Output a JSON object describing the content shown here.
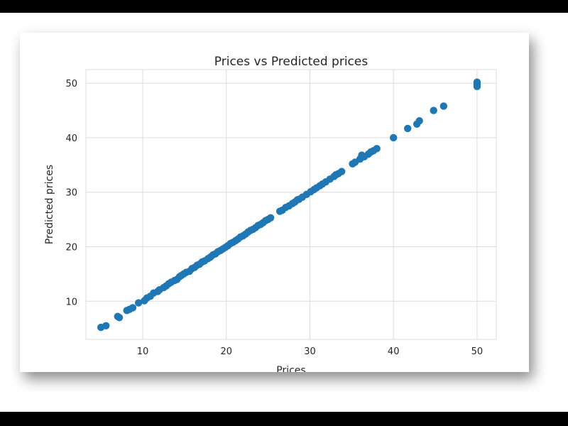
{
  "chart_data": {
    "type": "scatter",
    "title": "Prices vs Predicted prices",
    "xlabel": "Prices",
    "ylabel": "Predicted prices",
    "xlim": [
      3.2,
      52.3
    ],
    "ylim": [
      3.0,
      52.5
    ],
    "xticks": [
      10,
      20,
      30,
      40,
      50
    ],
    "yticks": [
      10,
      20,
      30,
      40,
      50
    ],
    "grid": true,
    "colors": {
      "points": "#1f77b4",
      "grid": "#dcdcdc",
      "background": "#ffffff"
    },
    "series": [
      {
        "points": [
          [
            5.0,
            5.2
          ],
          [
            5.6,
            5.5
          ],
          [
            7.0,
            7.2
          ],
          [
            7.2,
            7.0
          ],
          [
            8.1,
            8.3
          ],
          [
            8.4,
            8.5
          ],
          [
            8.8,
            8.8
          ],
          [
            9.5,
            9.7
          ],
          [
            10.2,
            10.1
          ],
          [
            10.5,
            10.6
          ],
          [
            10.9,
            10.9
          ],
          [
            11.3,
            11.5
          ],
          [
            11.8,
            11.8
          ],
          [
            12.0,
            12.1
          ],
          [
            12.5,
            12.5
          ],
          [
            12.8,
            12.8
          ],
          [
            13.1,
            13.2
          ],
          [
            13.4,
            13.5
          ],
          [
            13.8,
            13.8
          ],
          [
            14.1,
            14.0
          ],
          [
            14.4,
            14.5
          ],
          [
            14.6,
            14.7
          ],
          [
            14.9,
            15.0
          ],
          [
            15.2,
            15.3
          ],
          [
            15.6,
            15.5
          ],
          [
            15.9,
            16.0
          ],
          [
            16.2,
            16.2
          ],
          [
            16.5,
            16.6
          ],
          [
            16.8,
            16.8
          ],
          [
            17.1,
            17.2
          ],
          [
            17.4,
            17.4
          ],
          [
            17.8,
            17.8
          ],
          [
            18.1,
            18.1
          ],
          [
            18.4,
            18.5
          ],
          [
            18.7,
            18.7
          ],
          [
            19.0,
            19.1
          ],
          [
            19.3,
            19.3
          ],
          [
            19.6,
            19.6
          ],
          [
            19.9,
            19.9
          ],
          [
            20.2,
            20.2
          ],
          [
            20.5,
            20.6
          ],
          [
            20.8,
            20.8
          ],
          [
            21.1,
            21.1
          ],
          [
            21.4,
            21.4
          ],
          [
            21.7,
            21.8
          ],
          [
            22.0,
            22.0
          ],
          [
            22.3,
            22.3
          ],
          [
            22.6,
            22.7
          ],
          [
            22.9,
            23.0
          ],
          [
            23.2,
            23.2
          ],
          [
            23.5,
            23.5
          ],
          [
            23.8,
            23.9
          ],
          [
            24.1,
            24.1
          ],
          [
            24.4,
            24.4
          ],
          [
            24.7,
            24.8
          ],
          [
            25.0,
            25.0
          ],
          [
            25.3,
            25.3
          ],
          [
            26.4,
            26.5
          ],
          [
            26.7,
            26.7
          ],
          [
            27.1,
            27.2
          ],
          [
            27.5,
            27.5
          ],
          [
            27.9,
            27.9
          ],
          [
            28.2,
            28.2
          ],
          [
            28.5,
            28.6
          ],
          [
            28.7,
            28.7
          ],
          [
            29.1,
            29.1
          ],
          [
            29.6,
            29.6
          ],
          [
            30.1,
            30.1
          ],
          [
            30.5,
            30.5
          ],
          [
            30.8,
            30.8
          ],
          [
            31.2,
            31.2
          ],
          [
            31.5,
            31.5
          ],
          [
            31.9,
            31.9
          ],
          [
            32.4,
            32.4
          ],
          [
            32.9,
            32.9
          ],
          [
            33.1,
            33.2
          ],
          [
            33.4,
            33.4
          ],
          [
            33.8,
            33.8
          ],
          [
            35.1,
            35.2
          ],
          [
            35.4,
            35.5
          ],
          [
            36.0,
            36.1
          ],
          [
            36.2,
            36.8
          ],
          [
            36.5,
            36.5
          ],
          [
            37.0,
            37.0
          ],
          [
            37.3,
            37.4
          ],
          [
            37.6,
            37.6
          ],
          [
            38.0,
            38.0
          ],
          [
            40.0,
            40.0
          ],
          [
            41.7,
            41.7
          ],
          [
            42.8,
            42.5
          ],
          [
            43.1,
            43.1
          ],
          [
            44.8,
            45.0
          ],
          [
            46.0,
            45.8
          ],
          [
            50.0,
            50.2
          ],
          [
            50.0,
            49.8
          ],
          [
            50.0,
            49.4
          ]
        ]
      }
    ]
  }
}
